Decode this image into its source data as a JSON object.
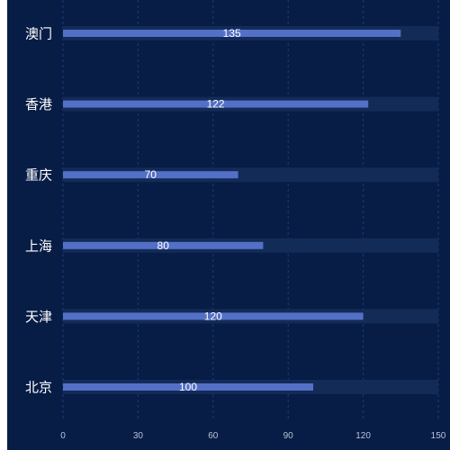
{
  "chart_data": {
    "type": "bar",
    "orientation": "horizontal",
    "categories": [
      "澳门",
      "香港",
      "重庆",
      "上海",
      "天津",
      "北京"
    ],
    "values": [
      135,
      122,
      70,
      80,
      120,
      100
    ],
    "xlim": [
      0,
      150
    ],
    "xticks": [
      "0",
      "30",
      "60",
      "90",
      "120",
      "150"
    ],
    "value_labels": [
      "135",
      "122",
      "70",
      "80",
      "120",
      "100"
    ],
    "grid": "vertical dashed",
    "colors": {
      "background": "#071d46",
      "bar": "#5470c6",
      "track": "#132b57",
      "grid": "#1b3a77",
      "text": "#ffffff",
      "tick_text": "#b9c3d9"
    }
  }
}
